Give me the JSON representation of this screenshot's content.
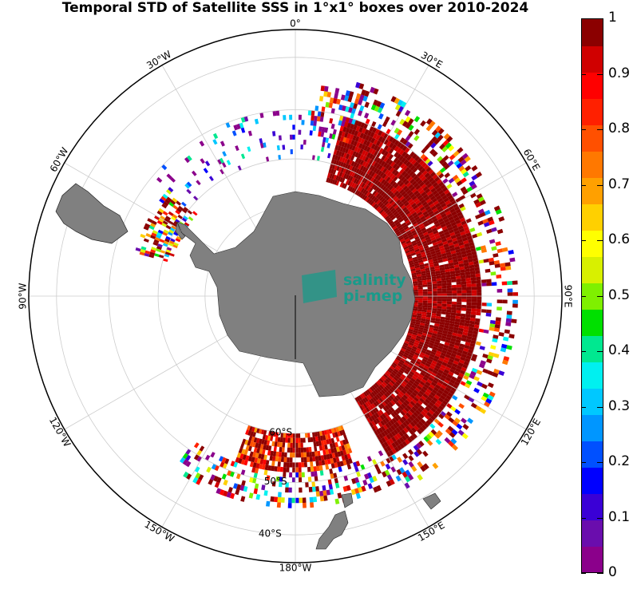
{
  "title": "Temporal STD of Satellite SSS in 1°x1° boxes over 2010-2024",
  "watermark": {
    "line1": "salinity",
    "line2": "pi-mep",
    "color": "#1a9a8a"
  },
  "longitude_labels": [
    {
      "text": "0°",
      "lon": 0
    },
    {
      "text": "30°E",
      "lon": 30
    },
    {
      "text": "60°E",
      "lon": 60
    },
    {
      "text": "90°E",
      "lon": 90
    },
    {
      "text": "120°E",
      "lon": 120
    },
    {
      "text": "150°E",
      "lon": 150
    },
    {
      "text": "180°W",
      "lon": 180
    },
    {
      "text": "150°W",
      "lon": -150
    },
    {
      "text": "120°W",
      "lon": -120
    },
    {
      "text": "90°W",
      "lon": -90
    },
    {
      "text": "60°W",
      "lon": -60
    },
    {
      "text": "30°W",
      "lon": -30
    }
  ],
  "latitude_labels": [
    {
      "text": "60°S",
      "lat": -60
    },
    {
      "text": "50°S",
      "lat": -50
    },
    {
      "text": "40°S",
      "lat": -40
    }
  ],
  "colorbar": {
    "min": 0,
    "max": 1,
    "ticks": [
      "0",
      "0.1",
      "0.2",
      "0.3",
      "0.4",
      "0.5",
      "0.6",
      "0.7",
      "0.8",
      "0.9",
      "1"
    ],
    "colors": [
      "#8b008b",
      "#6a0dad",
      "#3a00d6",
      "#0000ff",
      "#0050ff",
      "#0096ff",
      "#00c8ff",
      "#00f0f0",
      "#00e890",
      "#00e000",
      "#7ff000",
      "#d8f000",
      "#ffff00",
      "#ffd000",
      "#ffa000",
      "#ff7800",
      "#ff5000",
      "#ff2000",
      "#ff0000",
      "#d00000",
      "#8b0000"
    ]
  },
  "map_colors": {
    "land": "#808080",
    "ocean": "#ffffff",
    "grid": "#cccccc",
    "frame": "#000000"
  },
  "chart_data": {
    "type": "heatmap",
    "projection": "south polar stereographic",
    "variable": "Temporal STD of Satellite SSS",
    "lat_range": [
      -90,
      -35
    ],
    "value_range": [
      0,
      1
    ],
    "regions": [
      {
        "lon_range": [
          15,
          150
        ],
        "lat_range": [
          -65,
          -42
        ],
        "typical_value": 1.0
      },
      {
        "lon_range": [
          160,
          200
        ],
        "lat_range": [
          -60,
          -48
        ],
        "typical_value": 0.9
      },
      {
        "lon_range": [
          -75,
          -50
        ],
        "lat_range": [
          -62,
          -50
        ],
        "typical_value": 0.8
      },
      {
        "lon_range": [
          -50,
          15
        ],
        "lat_range": [
          -60,
          -45
        ],
        "typical_value": 0.2
      }
    ]
  }
}
